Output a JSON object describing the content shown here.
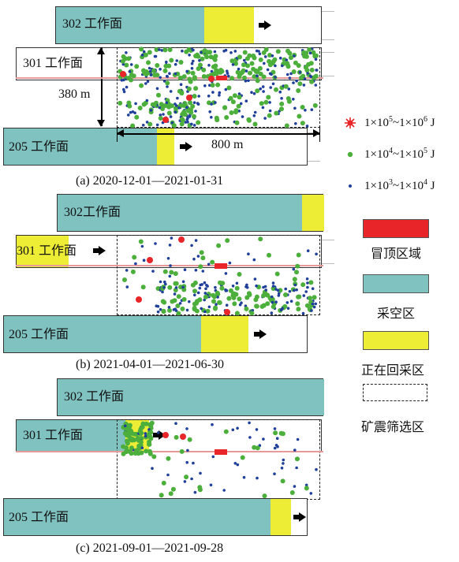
{
  "panels": [
    {
      "caption": "(a) 2020-12-01—2021-01-31",
      "face302": "302 工作面",
      "face301": "301 工作面",
      "face205": "205 工作面",
      "dim_vertical": "380 m",
      "dim_horizontal": "800 m"
    },
    {
      "caption": "(b) 2021-04-01—2021-06-30",
      "face302": "302工作面",
      "face301": "301 工作面",
      "face205": "205 工作面"
    },
    {
      "caption": "(c) 2021-09-01—2021-09-28",
      "face302": "302 工作面",
      "face301": "301 工作面",
      "face205": "205 工作面"
    }
  ],
  "legend": {
    "energy_high": {
      "base": "1×10",
      "exp1": "5",
      "mid": "~1×10",
      "exp2": "6",
      "unit": " J"
    },
    "energy_mid": {
      "base": "1×10",
      "exp1": "4",
      "mid": "~1×10",
      "exp2": "5",
      "unit": " J"
    },
    "energy_low": {
      "base": "1×10",
      "exp1": "3",
      "mid": "~1×10",
      "exp2": "4",
      "unit": " J"
    },
    "roof_fall": "冒顶区域",
    "goaf": "采空区",
    "mining": "正在回采区",
    "screen": "矿震筛选区"
  },
  "colors": {
    "red": "#e8262a",
    "green": "#4caf3c",
    "blue": "#1f3f9a",
    "teal": "#7fc2c0",
    "yellow": "#eded36"
  }
}
